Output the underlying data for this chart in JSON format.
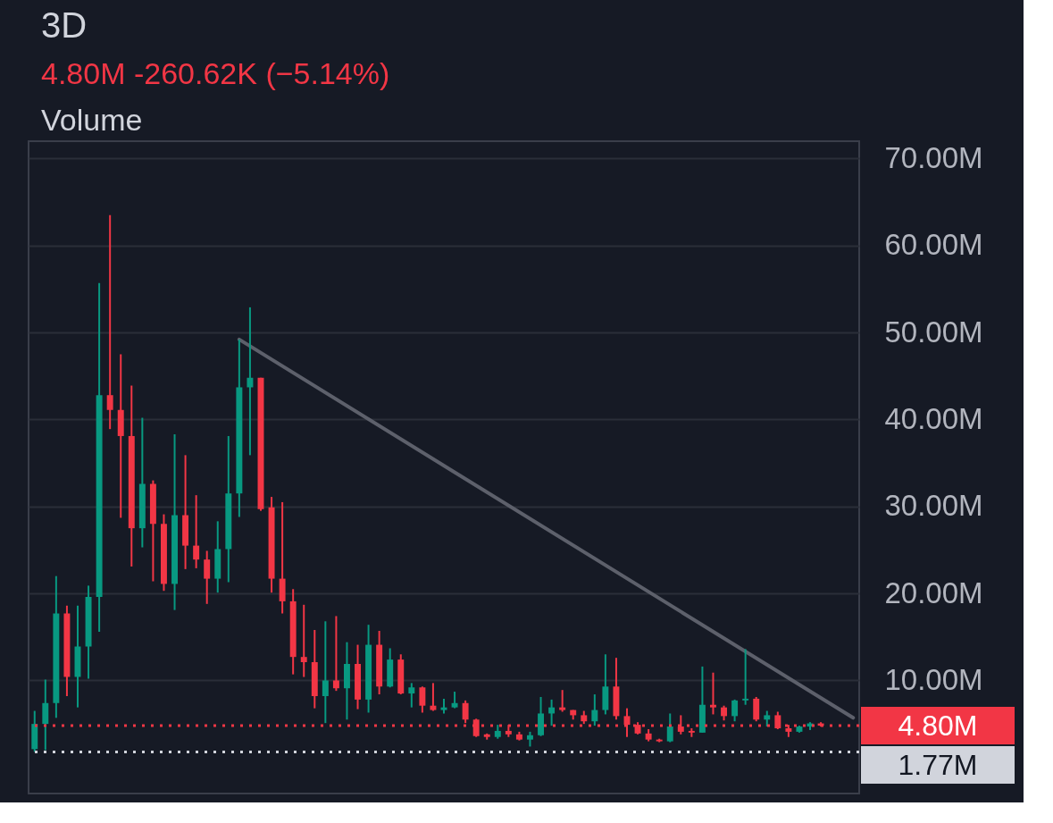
{
  "chart_data": {
    "type": "candlestick",
    "title": "3D",
    "annotations": [
      "4.80M -260.62K (−5.14%)",
      "Volume"
    ],
    "categories": [
      null,
      null,
      null,
      null,
      null,
      null,
      null,
      null,
      null,
      null,
      null,
      null,
      null,
      null,
      null,
      null,
      null,
      null,
      null,
      null,
      null,
      null,
      null,
      null,
      null,
      null,
      null,
      null,
      null,
      null,
      null,
      null,
      null,
      null,
      null,
      null,
      null,
      null,
      null,
      null,
      null,
      null,
      null,
      null,
      null,
      null,
      null,
      null,
      null,
      null,
      null,
      null,
      null,
      null,
      null,
      null,
      null,
      null,
      null,
      null,
      null,
      null,
      null,
      null,
      null,
      null,
      null,
      null,
      null,
      null,
      null,
      null,
      null,
      null,
      null,
      null,
      null
    ],
    "ohlc": [
      [
        2.1,
        6.5,
        1.8,
        5.0
      ],
      [
        5.0,
        10.1,
        2.0,
        7.4
      ],
      [
        7.4,
        22.0,
        5.7,
        17.7
      ],
      [
        17.7,
        18.6,
        8.2,
        10.4
      ],
      [
        10.4,
        18.6,
        6.9,
        13.9
      ],
      [
        13.9,
        20.9,
        10.2,
        19.6
      ],
      [
        19.6,
        55.7,
        15.6,
        42.8
      ],
      [
        42.8,
        63.5,
        38.9,
        41.1
      ],
      [
        41.1,
        47.5,
        28.7,
        38.1
      ],
      [
        38.1,
        43.9,
        23.1,
        27.5
      ],
      [
        27.5,
        40.2,
        25.3,
        32.6
      ],
      [
        32.6,
        33.0,
        21.4,
        28.0
      ],
      [
        28.0,
        29.1,
        20.3,
        21.1
      ],
      [
        21.1,
        38.3,
        18.1,
        29.0
      ],
      [
        29.0,
        35.9,
        22.8,
        25.5
      ],
      [
        25.5,
        31.3,
        22.9,
        23.9
      ],
      [
        23.9,
        24.9,
        18.8,
        21.7
      ],
      [
        21.7,
        28.3,
        20.1,
        25.1
      ],
      [
        25.1,
        38.1,
        21.3,
        31.5
      ],
      [
        31.5,
        49.2,
        28.8,
        43.7
      ],
      [
        43.7,
        52.9,
        35.9,
        44.8
      ],
      [
        44.8,
        44.8,
        29.5,
        29.7
      ],
      [
        29.9,
        31.1,
        20.1,
        21.7
      ],
      [
        21.7,
        30.5,
        17.7,
        19.1
      ],
      [
        19.1,
        20.5,
        10.7,
        12.7
      ],
      [
        12.7,
        18.7,
        10.4,
        12.1
      ],
      [
        12.1,
        15.8,
        6.8,
        8.2
      ],
      [
        8.2,
        16.8,
        5.1,
        10.0
      ],
      [
        10.0,
        17.4,
        8.8,
        9.1
      ],
      [
        9.1,
        14.4,
        5.5,
        11.9
      ],
      [
        11.9,
        14.1,
        6.7,
        7.8
      ],
      [
        7.8,
        16.4,
        6.3,
        14.1
      ],
      [
        14.1,
        15.7,
        8.4,
        9.3
      ],
      [
        9.3,
        13.7,
        9.2,
        12.4
      ],
      [
        12.4,
        13.0,
        8.4,
        8.5
      ],
      [
        8.5,
        9.7,
        6.9,
        9.2
      ],
      [
        9.2,
        9.3,
        6.3,
        7.1
      ],
      [
        7.1,
        9.7,
        6.5,
        6.6
      ],
      [
        6.6,
        7.9,
        6.2,
        6.9
      ],
      [
        6.9,
        8.7,
        6.8,
        7.4
      ],
      [
        7.4,
        7.7,
        5.1,
        5.5
      ],
      [
        5.5,
        5.6,
        3.5,
        3.6
      ],
      [
        3.8,
        3.9,
        3.2,
        3.5
      ],
      [
        3.5,
        4.9,
        3.3,
        4.2
      ],
      [
        4.2,
        4.9,
        3.5,
        3.8
      ],
      [
        3.8,
        4.1,
        3.1,
        3.2
      ],
      [
        3.2,
        4.1,
        2.4,
        3.7
      ],
      [
        3.7,
        8.1,
        3.6,
        6.2
      ],
      [
        6.2,
        7.8,
        4.8,
        6.9
      ],
      [
        6.9,
        8.9,
        6.4,
        6.6
      ],
      [
        6.6,
        6.6,
        5.5,
        6.0
      ],
      [
        6.0,
        6.5,
        5.0,
        5.3
      ],
      [
        5.3,
        8.4,
        4.8,
        6.6
      ],
      [
        6.6,
        13.0,
        6.1,
        9.3
      ],
      [
        9.3,
        12.6,
        5.5,
        5.9
      ],
      [
        5.9,
        6.8,
        3.5,
        4.9
      ],
      [
        4.9,
        5.2,
        3.8,
        3.9
      ],
      [
        3.9,
        4.4,
        3.0,
        3.2
      ],
      [
        3.2,
        3.3,
        2.9,
        3.0
      ],
      [
        3.0,
        6.2,
        2.9,
        4.7
      ],
      [
        4.7,
        6.0,
        3.8,
        4.1
      ],
      [
        4.2,
        4.5,
        3.5,
        4.0
      ],
      [
        4.0,
        11.6,
        4.0,
        7.2
      ],
      [
        7.2,
        10.9,
        6.1,
        6.9
      ],
      [
        6.9,
        7.1,
        5.4,
        5.9
      ],
      [
        5.9,
        7.8,
        5.3,
        7.7
      ],
      [
        7.7,
        13.6,
        7.2,
        7.9
      ],
      [
        7.9,
        8.1,
        5.3,
        5.5
      ],
      [
        5.5,
        6.5,
        4.7,
        6.0
      ],
      [
        6.0,
        6.4,
        4.4,
        4.5
      ],
      [
        4.5,
        4.9,
        3.5,
        4.1
      ],
      [
        4.1,
        4.8,
        4.0,
        4.7
      ],
      [
        4.7,
        5.2,
        4.3,
        5.06
      ],
      [
        5.06,
        5.2,
        4.7,
        4.8
      ],
      null,
      null,
      null
    ],
    "colors": [
      "#089981",
      "#089981",
      "#089981",
      "#f23645",
      "#089981",
      "#089981",
      "#089981",
      "#f23645",
      "#f23645",
      "#f23645",
      "#089981",
      "#f23645",
      "#f23645",
      "#089981",
      "#f23645",
      "#f23645",
      "#f23645",
      "#089981",
      "#089981",
      "#089981",
      "#089981",
      "#f23645",
      "#f23645",
      "#f23645",
      "#f23645",
      "#f23645",
      "#f23645",
      "#089981",
      "#f23645",
      "#089981",
      "#f23645",
      "#089981",
      "#f23645",
      "#089981",
      "#f23645",
      "#089981",
      "#f23645",
      "#f23645",
      "#089981",
      "#089981",
      "#f23645",
      "#f23645",
      "#f23645",
      "#089981",
      "#f23645",
      "#f23645",
      "#089981",
      "#089981",
      "#089981",
      "#f23645",
      "#f23645",
      "#f23645",
      "#089981",
      "#089981",
      "#f23645",
      "#f23645",
      "#f23645",
      "#f23645",
      "#f23645",
      "#089981",
      "#f23645",
      "#f23645",
      "#089981",
      "#f23645",
      "#f23645",
      "#089981",
      "#089981",
      "#f23645",
      "#089981",
      "#f23645",
      "#f23645",
      "#089981",
      "#089981",
      "#f23645",
      null,
      null,
      null
    ],
    "series": [
      {
        "type": "line",
        "color": "#5d606b",
        "values": [
          null,
          null,
          null,
          null,
          null,
          null,
          null,
          null,
          null,
          null,
          null,
          null,
          null,
          null,
          null,
          null,
          null,
          null,
          null,
          49.2,
          null,
          null,
          null,
          null,
          null,
          null,
          null,
          null,
          null,
          null,
          null,
          null,
          null,
          null,
          null,
          null,
          null,
          null,
          null,
          null,
          null,
          null,
          null,
          null,
          null,
          null,
          null,
          null,
          null,
          null,
          null,
          null,
          null,
          null,
          null,
          null,
          null,
          null,
          null,
          null,
          null,
          null,
          null,
          null,
          null,
          null,
          null,
          null,
          null,
          null,
          null,
          null,
          null,
          null,
          null,
          null,
          5.7
        ]
      }
    ],
    "ylim": [
      -3,
      72
    ],
    "yticks": [
      {
        "value": 10,
        "label": "10.00M"
      },
      {
        "value": 20,
        "label": "20.00M"
      },
      {
        "value": 30,
        "label": "30.00M"
      },
      {
        "value": 40,
        "label": "40.00M"
      },
      {
        "value": 50,
        "label": "50.00M"
      },
      {
        "value": 60,
        "label": "60.00M"
      },
      {
        "value": 70,
        "label": "70.00M"
      }
    ],
    "ref_lines": [
      {
        "axis": "y",
        "value": 4.8,
        "label": "4.80M",
        "color": "#f23645",
        "line_style": "dotted"
      },
      {
        "axis": "y",
        "value": 1.77,
        "label": "1.77M",
        "color": "#d1d4dc",
        "line_style": "dotted"
      }
    ],
    "grid": "y",
    "tick_labels": "y"
  }
}
